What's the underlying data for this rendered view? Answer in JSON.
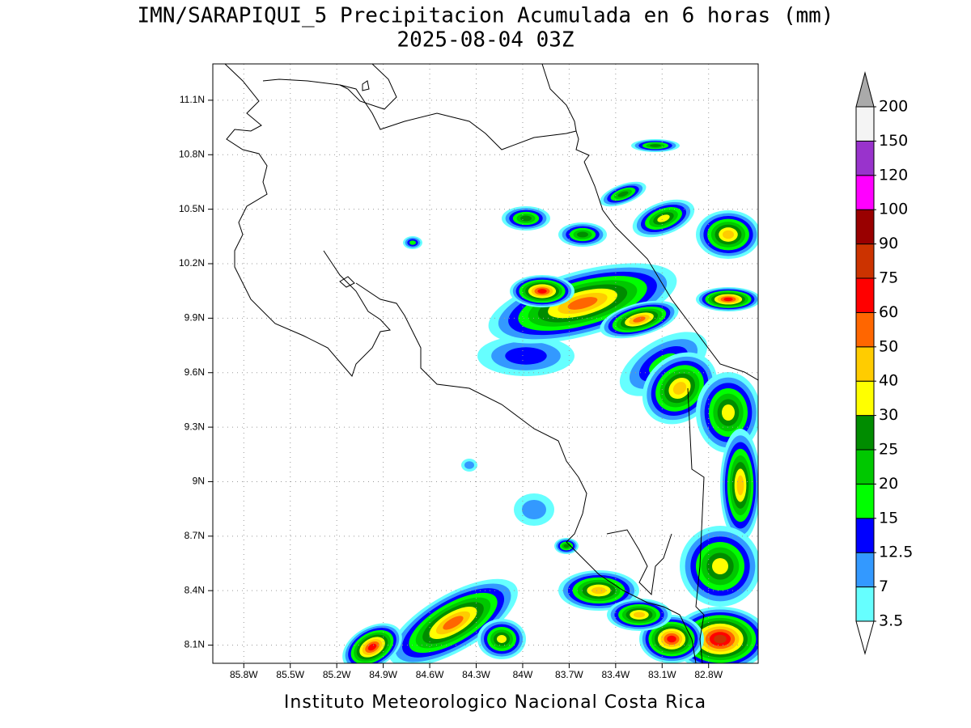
{
  "title": "IMN/SARAPIQUI_5 Precipitacion Acumulada en 6 horas (mm)",
  "subtitle": "2025-08-04 03Z",
  "footer": "Instituto Meteorologico Nacional Costa Rica",
  "map": {
    "xlim": [
      -86.0,
      -82.48
    ],
    "ylim": [
      8.0,
      11.3
    ],
    "xticks": [
      {
        "value": -85.8,
        "label": "85.8W"
      },
      {
        "value": -85.5,
        "label": "85.5W"
      },
      {
        "value": -85.2,
        "label": "85.2W"
      },
      {
        "value": -84.9,
        "label": "84.9W"
      },
      {
        "value": -84.6,
        "label": "84.6W"
      },
      {
        "value": -84.3,
        "label": "84.3W"
      },
      {
        "value": -84.0,
        "label": "84W"
      },
      {
        "value": -83.7,
        "label": "83.7W"
      },
      {
        "value": -83.4,
        "label": "83.4W"
      },
      {
        "value": -83.1,
        "label": "83.1W"
      },
      {
        "value": -82.8,
        "label": "82.8W"
      }
    ],
    "yticks": [
      {
        "value": 8.1,
        "label": "8.1N"
      },
      {
        "value": 8.4,
        "label": "8.4N"
      },
      {
        "value": 8.7,
        "label": "8.7N"
      },
      {
        "value": 9.0,
        "label": "9N"
      },
      {
        "value": 9.3,
        "label": "9.3N"
      },
      {
        "value": 9.6,
        "label": "9.6N"
      },
      {
        "value": 9.9,
        "label": "9.9N"
      },
      {
        "value": 10.2,
        "label": "10.2N"
      },
      {
        "value": 10.5,
        "label": "10.5N"
      },
      {
        "value": 10.8,
        "label": "10.8N"
      },
      {
        "value": 11.1,
        "label": "11.1N"
      }
    ],
    "grid": true
  },
  "colorbar": {
    "levels": [
      3.5,
      7,
      12.5,
      15,
      20,
      25,
      30,
      40,
      50,
      60,
      75,
      90,
      100,
      120,
      150,
      200
    ],
    "colors": [
      "#66ffff",
      "#3399ff",
      "#0000ff",
      "#00ff00",
      "#00c800",
      "#008c00",
      "#ffff00",
      "#ffcc00",
      "#ff6600",
      "#ff0000",
      "#cc3300",
      "#990000",
      "#ff00ff",
      "#9933cc",
      "#f4f4f4"
    ],
    "under_color": "#ffffff",
    "over_color": "#aaaaaa"
  }
}
